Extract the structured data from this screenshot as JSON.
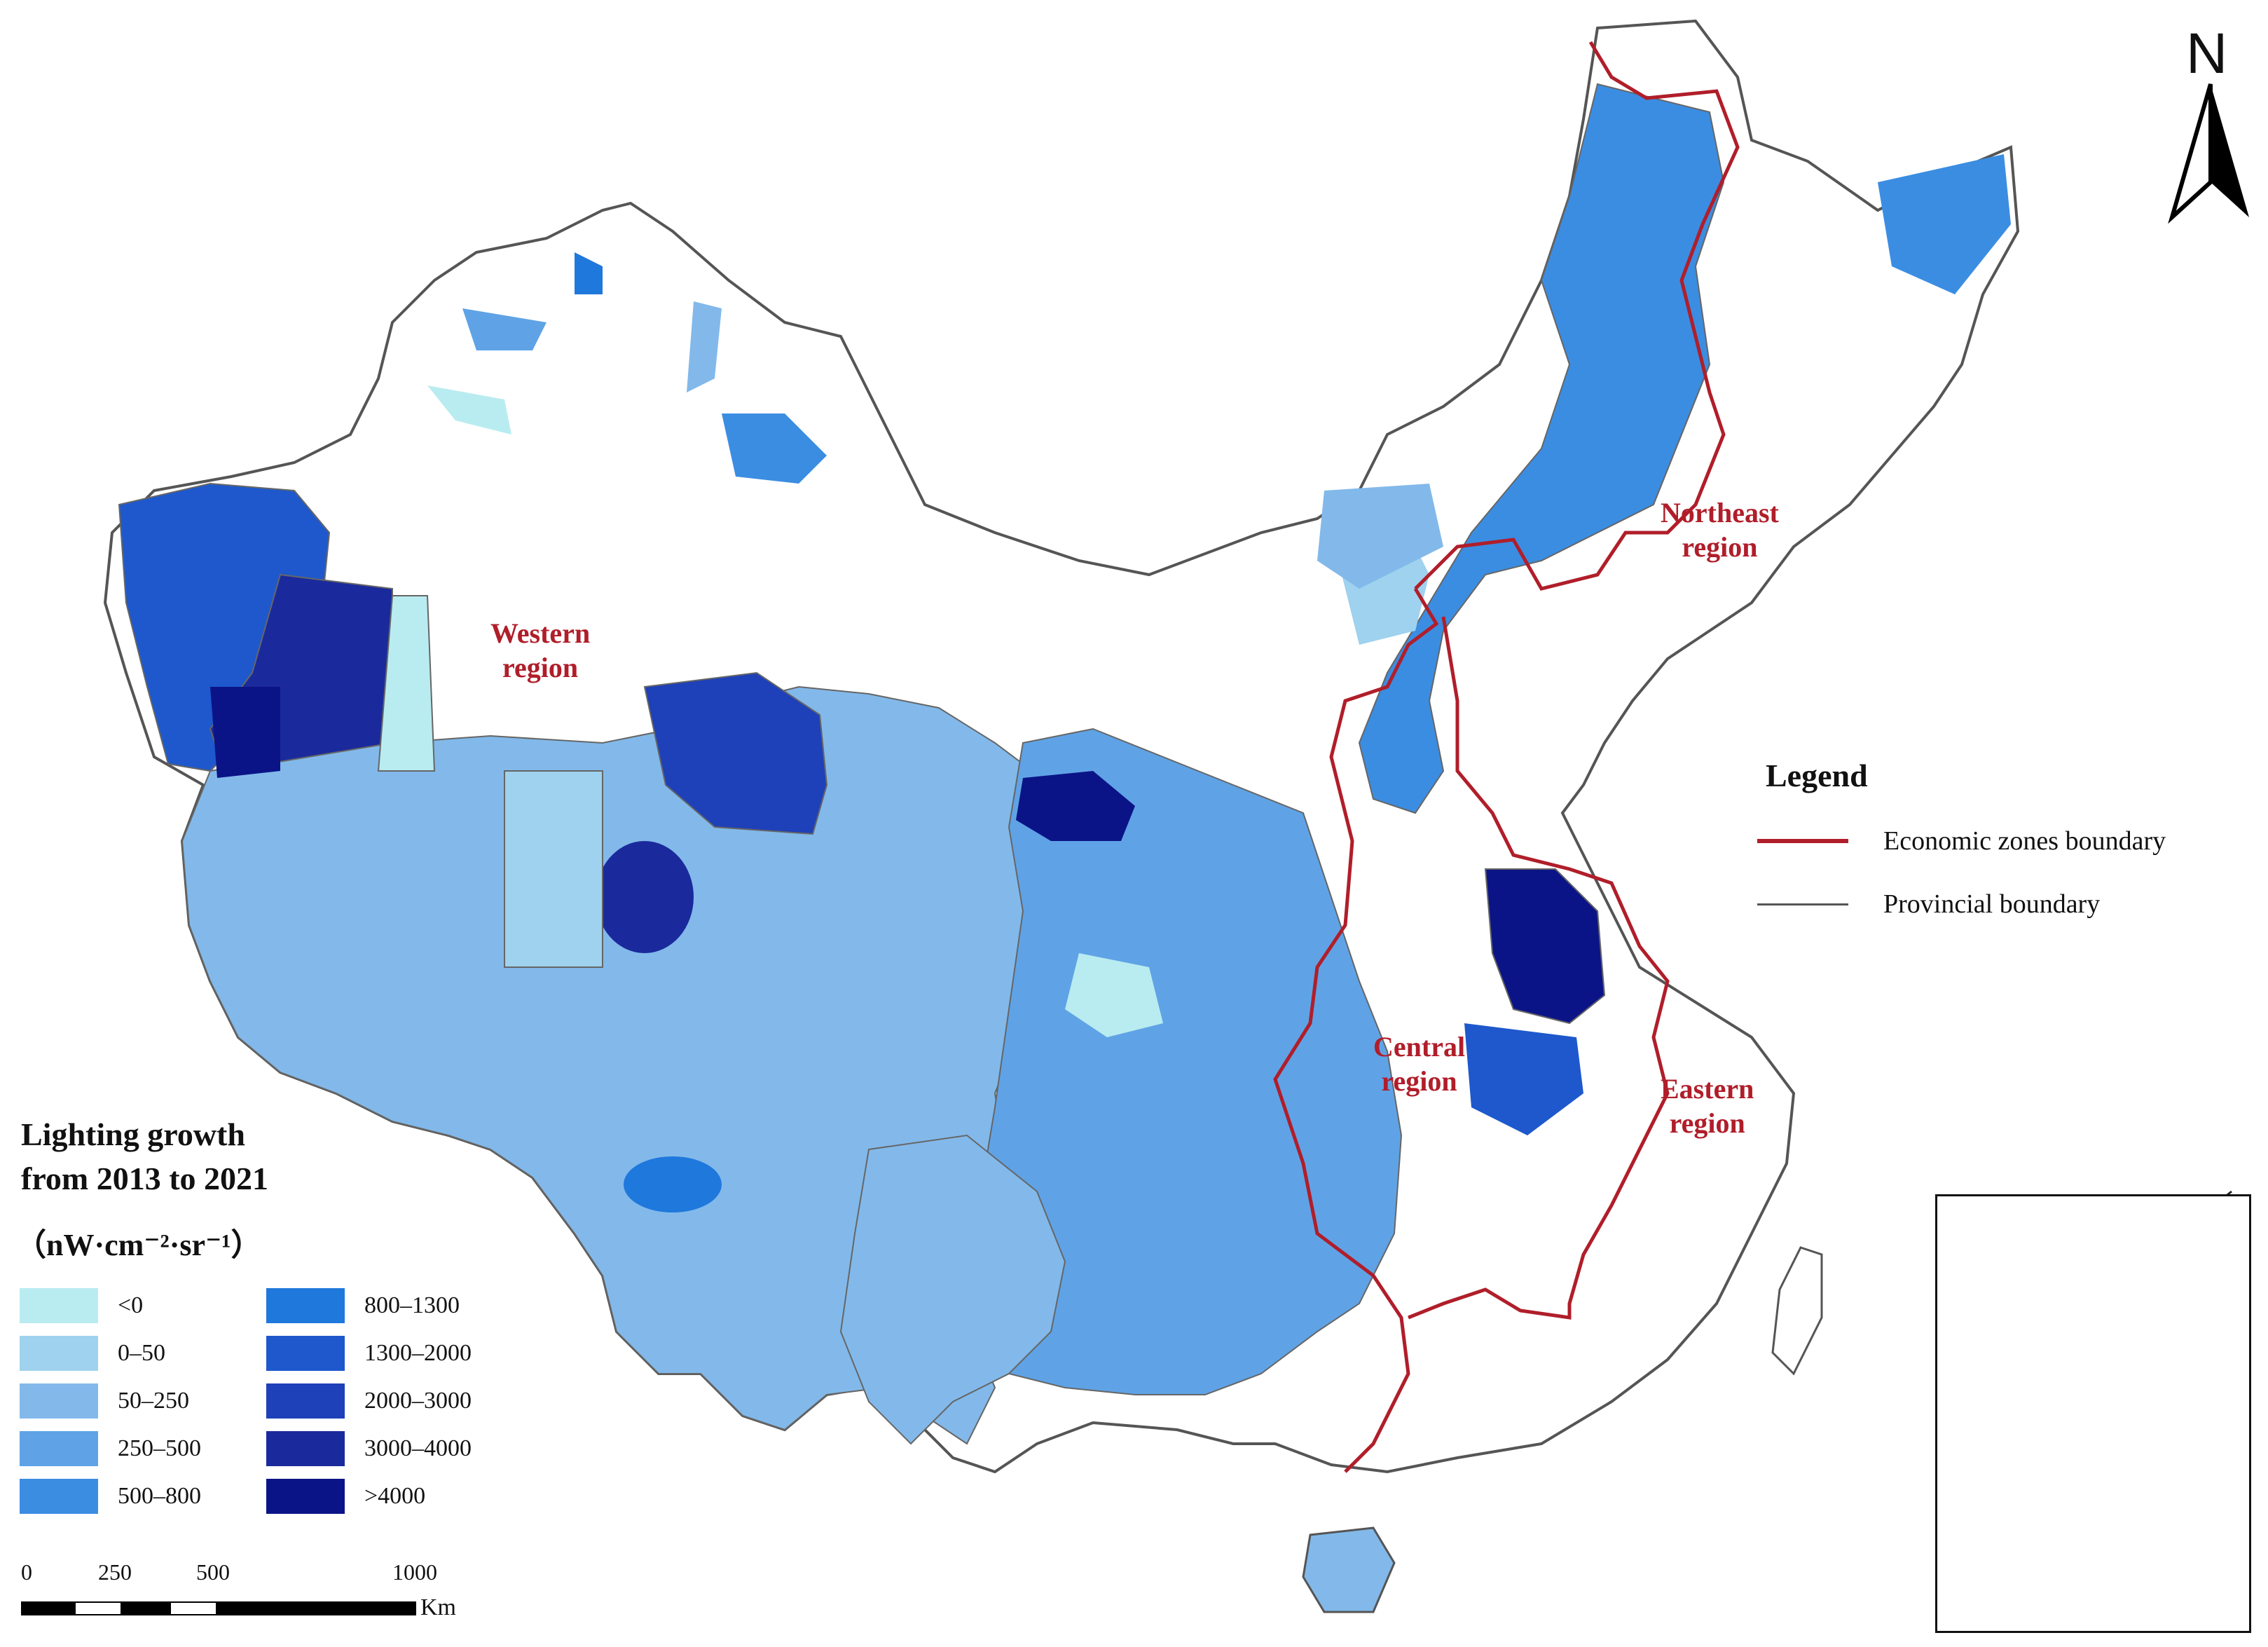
{
  "north_label": "N",
  "regions": {
    "western": [
      "Western",
      "region"
    ],
    "central": [
      "Central",
      "region"
    ],
    "eastern": [
      "Eastern",
      "region"
    ],
    "northeast": [
      "Northeast",
      "region"
    ]
  },
  "legend": {
    "title": "Legend",
    "zone_boundary": "Economic zones boundary",
    "provincial_boundary": "Provincial boundary",
    "zone_boundary_color": "#b01e2a",
    "provincial_boundary_color": "#555555"
  },
  "growth_legend": {
    "title_line1": "Lighting growth",
    "title_line2": "from 2013 to 2021",
    "unit": "（nW·cm⁻²·sr⁻¹）",
    "classes": [
      {
        "label": "<0",
        "color": "#b9ecf0"
      },
      {
        "label": "0–50",
        "color": "#9fd2ee"
      },
      {
        "label": "50–250",
        "color": "#82b9ea"
      },
      {
        "label": "250–500",
        "color": "#5fa3e6"
      },
      {
        "label": "500–800",
        "color": "#3b8de2"
      },
      {
        "label": "800–1300",
        "color": "#1f78dc"
      },
      {
        "label": "1300–2000",
        "color": "#1e58cc"
      },
      {
        "label": "2000–3000",
        "color": "#1e40b8"
      },
      {
        "label": "3000–4000",
        "color": "#1a2a9c"
      },
      {
        "label": ">4000",
        "color": "#0b1487"
      }
    ]
  },
  "scale_bar": {
    "ticks": [
      "0",
      "250",
      "500",
      "1000"
    ],
    "unit": "Km"
  }
}
